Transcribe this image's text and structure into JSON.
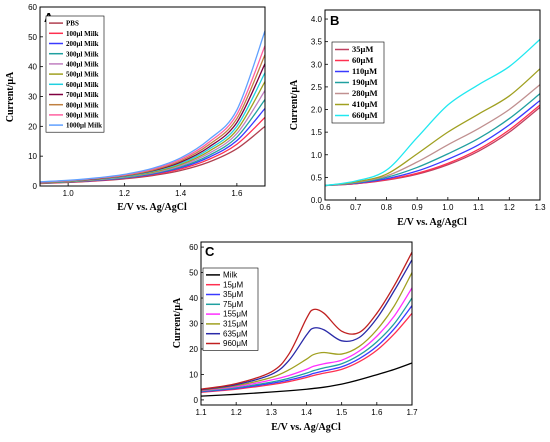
{
  "chart_data": [
    {
      "type": "line",
      "panel_label": "A",
      "xlabel": "E/V vs. Ag/AgCl",
      "ylabel": "Current/μA",
      "xlim": [
        0.9,
        1.7
      ],
      "ylim": [
        0,
        60
      ],
      "xticks": [
        "1.0",
        "1.2",
        "1.4",
        "1.6"
      ],
      "yticks": [
        "0",
        "10",
        "20",
        "30",
        "40",
        "50",
        "60"
      ],
      "legend_position": "top-left",
      "grid": false,
      "series": [
        {
          "name": "PBS",
          "color": "#b04050",
          "x": [
            0.9,
            1.0,
            1.1,
            1.2,
            1.3,
            1.4,
            1.5,
            1.6,
            1.7
          ],
          "y": [
            0.8,
            1.2,
            1.7,
            2.4,
            3.5,
            5.2,
            8.0,
            12.5,
            20.0
          ]
        },
        {
          "name": "100μl Milk",
          "color": "#ff3050",
          "x": [
            0.9,
            1.0,
            1.1,
            1.2,
            1.3,
            1.4,
            1.5,
            1.6,
            1.7
          ],
          "y": [
            0.9,
            1.3,
            1.8,
            2.6,
            3.8,
            5.7,
            8.9,
            14.0,
            23.0
          ]
        },
        {
          "name": "200μl Milk",
          "color": "#3a3aff",
          "x": [
            0.9,
            1.0,
            1.1,
            1.2,
            1.3,
            1.4,
            1.5,
            1.6,
            1.7
          ],
          "y": [
            1.0,
            1.4,
            1.9,
            2.7,
            4.0,
            6.1,
            9.6,
            15.2,
            26.0
          ]
        },
        {
          "name": "300μl Milk",
          "color": "#20a0a0",
          "x": [
            0.9,
            1.0,
            1.1,
            1.2,
            1.3,
            1.4,
            1.5,
            1.6,
            1.7
          ],
          "y": [
            1.0,
            1.4,
            2.0,
            2.8,
            4.2,
            6.4,
            10.2,
            16.4,
            29.0
          ]
        },
        {
          "name": "400μl Milk",
          "color": "#c080c0",
          "x": [
            0.9,
            1.0,
            1.1,
            1.2,
            1.3,
            1.4,
            1.5,
            1.6,
            1.7
          ],
          "y": [
            1.1,
            1.5,
            2.1,
            3.0,
            4.4,
            6.8,
            10.9,
            17.6,
            32.0
          ]
        },
        {
          "name": "500μl Milk",
          "color": "#a0a020",
          "x": [
            0.9,
            1.0,
            1.1,
            1.2,
            1.3,
            1.4,
            1.5,
            1.6,
            1.7
          ],
          "y": [
            1.1,
            1.5,
            2.2,
            3.1,
            4.6,
            7.2,
            11.6,
            18.8,
            35.0
          ]
        },
        {
          "name": "600μl Milk",
          "color": "#20d0e0",
          "x": [
            0.9,
            1.0,
            1.1,
            1.2,
            1.3,
            1.4,
            1.5,
            1.6,
            1.7
          ],
          "y": [
            1.2,
            1.6,
            2.3,
            3.2,
            4.9,
            7.6,
            12.3,
            20.0,
            38.0
          ]
        },
        {
          "name": "700μl Milk",
          "color": "#800040",
          "x": [
            0.9,
            1.0,
            1.1,
            1.2,
            1.3,
            1.4,
            1.5,
            1.6,
            1.7
          ],
          "y": [
            1.2,
            1.7,
            2.4,
            3.4,
            5.1,
            8.0,
            13.0,
            21.3,
            41.0
          ]
        },
        {
          "name": "800μl Milk",
          "color": "#c08040",
          "x": [
            0.9,
            1.0,
            1.1,
            1.2,
            1.3,
            1.4,
            1.5,
            1.6,
            1.7
          ],
          "y": [
            1.3,
            1.7,
            2.5,
            3.5,
            5.3,
            8.4,
            13.8,
            22.6,
            44.0
          ]
        },
        {
          "name": "900μl Milk",
          "color": "#ff60a0",
          "x": [
            0.9,
            1.0,
            1.1,
            1.2,
            1.3,
            1.4,
            1.5,
            1.6,
            1.7
          ],
          "y": [
            1.3,
            1.8,
            2.6,
            3.7,
            5.6,
            8.9,
            14.6,
            24.0,
            47.0
          ]
        },
        {
          "name": "1000μl Milk",
          "color": "#60a0ff",
          "x": [
            0.9,
            1.0,
            1.1,
            1.2,
            1.3,
            1.4,
            1.5,
            1.6,
            1.7
          ],
          "y": [
            1.4,
            1.9,
            2.7,
            3.9,
            5.9,
            9.4,
            15.5,
            25.5,
            52.0
          ]
        }
      ]
    },
    {
      "type": "line",
      "panel_label": "B",
      "xlabel": "E/V vs. Ag/AgCl",
      "ylabel": "Current/μA",
      "xlim": [
        0.6,
        1.3
      ],
      "ylim": [
        0,
        4.2
      ],
      "xticks": [
        "0.6",
        "0.7",
        "0.8",
        "0.9",
        "1.0",
        "1.1",
        "1.2",
        "1.3"
      ],
      "yticks": [
        "0.0",
        "0.5",
        "1.0",
        "1.5",
        "2.0",
        "2.5",
        "3.0",
        "3.5",
        "4.0"
      ],
      "legend_position": "top-left",
      "grid": false,
      "series": [
        {
          "name": "35μM",
          "color": "#c04060",
          "x": [
            0.6,
            0.7,
            0.8,
            0.9,
            1.0,
            1.1,
            1.2,
            1.3
          ],
          "y": [
            0.32,
            0.36,
            0.44,
            0.57,
            0.78,
            1.08,
            1.5,
            2.05
          ]
        },
        {
          "name": "60μM",
          "color": "#ff3050",
          "x": [
            0.6,
            0.7,
            0.8,
            0.9,
            1.0,
            1.1,
            1.2,
            1.3
          ],
          "y": [
            0.32,
            0.36,
            0.45,
            0.59,
            0.81,
            1.12,
            1.55,
            2.1
          ]
        },
        {
          "name": "110μM",
          "color": "#3a3aff",
          "x": [
            0.6,
            0.7,
            0.8,
            0.9,
            1.0,
            1.1,
            1.2,
            1.3
          ],
          "y": [
            0.32,
            0.37,
            0.47,
            0.64,
            0.9,
            1.22,
            1.66,
            2.2
          ]
        },
        {
          "name": "190μM",
          "color": "#20a0a0",
          "x": [
            0.6,
            0.7,
            0.8,
            0.9,
            1.0,
            1.1,
            1.2,
            1.3
          ],
          "y": [
            0.32,
            0.38,
            0.5,
            0.72,
            1.02,
            1.36,
            1.8,
            2.35
          ]
        },
        {
          "name": "280μM",
          "color": "#c09090",
          "x": [
            0.6,
            0.7,
            0.8,
            0.9,
            1.0,
            1.1,
            1.2,
            1.3
          ],
          "y": [
            0.32,
            0.39,
            0.53,
            0.84,
            1.22,
            1.58,
            2.0,
            2.55
          ]
        },
        {
          "name": "410μM",
          "color": "#a0a020",
          "x": [
            0.6,
            0.7,
            0.8,
            0.9,
            1.0,
            1.1,
            1.2,
            1.3
          ],
          "y": [
            0.32,
            0.4,
            0.57,
            1.02,
            1.5,
            1.9,
            2.3,
            2.9
          ]
        },
        {
          "name": "660μM",
          "color": "#20e8f0",
          "x": [
            0.6,
            0.7,
            0.8,
            0.9,
            1.0,
            1.1,
            1.2,
            1.3
          ],
          "y": [
            0.32,
            0.42,
            0.66,
            1.38,
            2.1,
            2.55,
            2.95,
            3.55
          ]
        }
      ]
    },
    {
      "type": "line",
      "panel_label": "C",
      "xlabel": "E/V vs. Ag/AgCl",
      "ylabel": "Current/μA",
      "xlim": [
        1.1,
        1.7
      ],
      "ylim": [
        -2,
        62
      ],
      "xticks": [
        "1.1",
        "1.2",
        "1.3",
        "1.4",
        "1.5",
        "1.6",
        "1.7"
      ],
      "yticks": [
        "0",
        "10",
        "20",
        "30",
        "40",
        "50",
        "60"
      ],
      "legend_position": "top-left",
      "grid": false,
      "series": [
        {
          "name": "Milk",
          "color": "#000000",
          "x": [
            1.1,
            1.2,
            1.3,
            1.35,
            1.4,
            1.42,
            1.45,
            1.5,
            1.55,
            1.6,
            1.65,
            1.7
          ],
          "y": [
            1.5,
            2.2,
            3.1,
            3.6,
            4.2,
            4.5,
            5.0,
            6.2,
            7.9,
            9.9,
            12.0,
            14.5
          ]
        },
        {
          "name": "15μM",
          "color": "#ff3050",
          "x": [
            1.1,
            1.2,
            1.3,
            1.35,
            1.4,
            1.42,
            1.45,
            1.5,
            1.55,
            1.6,
            1.65,
            1.7
          ],
          "y": [
            3.0,
            4.2,
            6.0,
            7.2,
            8.8,
            9.6,
            10.5,
            12.0,
            15.0,
            19.5,
            26.0,
            34.0
          ]
        },
        {
          "name": "35μM",
          "color": "#3a3aff",
          "x": [
            1.1,
            1.2,
            1.3,
            1.35,
            1.4,
            1.42,
            1.45,
            1.5,
            1.55,
            1.6,
            1.65,
            1.7
          ],
          "y": [
            3.2,
            4.5,
            6.5,
            7.8,
            9.5,
            10.4,
            11.4,
            13.0,
            16.2,
            21.0,
            28.0,
            37.0
          ]
        },
        {
          "name": "75μM",
          "color": "#20a0a0",
          "x": [
            1.1,
            1.2,
            1.3,
            1.35,
            1.4,
            1.42,
            1.45,
            1.5,
            1.55,
            1.6,
            1.65,
            1.7
          ],
          "y": [
            3.4,
            4.8,
            7.0,
            8.5,
            10.5,
            11.5,
            12.6,
            14.2,
            17.6,
            22.8,
            30.0,
            40.0
          ]
        },
        {
          "name": "155μM",
          "color": "#ff30ff",
          "x": [
            1.1,
            1.2,
            1.3,
            1.35,
            1.4,
            1.42,
            1.45,
            1.5,
            1.55,
            1.6,
            1.65,
            1.7
          ],
          "y": [
            3.6,
            5.2,
            7.8,
            9.6,
            12.0,
            13.2,
            14.2,
            15.6,
            19.2,
            25.0,
            33.0,
            44.0
          ]
        },
        {
          "name": "315μM",
          "color": "#a0a020",
          "x": [
            1.1,
            1.2,
            1.3,
            1.35,
            1.4,
            1.42,
            1.45,
            1.5,
            1.55,
            1.6,
            1.65,
            1.7
          ],
          "y": [
            3.8,
            5.6,
            8.8,
            11.8,
            16.0,
            17.8,
            18.6,
            18.0,
            21.0,
            27.5,
            37.0,
            50.0
          ]
        },
        {
          "name": "635μM",
          "color": "#2a2aa8",
          "x": [
            1.1,
            1.2,
            1.3,
            1.35,
            1.4,
            1.42,
            1.45,
            1.5,
            1.55,
            1.6,
            1.65,
            1.7
          ],
          "y": [
            4.0,
            6.0,
            10.0,
            15.5,
            25.5,
            28.2,
            27.5,
            23.2,
            24.5,
            32.0,
            43.0,
            55.0
          ]
        },
        {
          "name": "960μM",
          "color": "#c02020",
          "x": [
            1.1,
            1.2,
            1.3,
            1.35,
            1.4,
            1.42,
            1.45,
            1.5,
            1.55,
            1.6,
            1.65,
            1.7
          ],
          "y": [
            4.2,
            6.4,
            11.0,
            18.0,
            32.0,
            35.5,
            34.0,
            27.0,
            26.5,
            34.0,
            45.0,
            58.0
          ]
        }
      ]
    }
  ]
}
